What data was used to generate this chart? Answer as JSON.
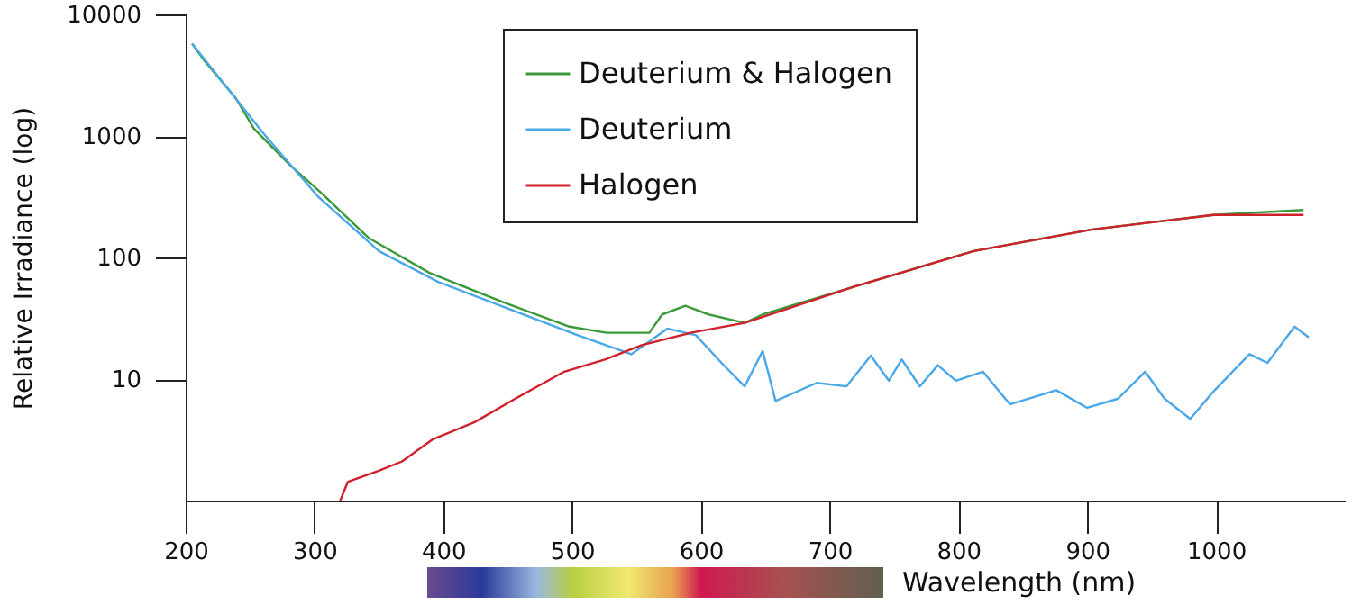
{
  "chart_data": {
    "type": "line",
    "xlabel": "Wavelength (nm)",
    "ylabel": "Relative Irradiance (log)",
    "log": "y",
    "grid": false,
    "legend": "top",
    "line_style": "solid",
    "marker": "none",
    "xlim": [
      200,
      1100
    ],
    "ylim": [
      1,
      10000
    ],
    "xticks": [
      200,
      300,
      400,
      500,
      600,
      700,
      800,
      900,
      1000
    ],
    "yticks": [
      10,
      100,
      1000,
      10000
    ],
    "series": [
      {
        "name": "Deuterium & Halogen",
        "color": "#3a9a3a",
        "x": [
          205,
          215,
          239,
          253,
          281,
          304,
          342,
          389,
          446,
          498,
          527,
          560,
          570,
          588,
          606,
          634,
          648,
          718,
          812,
          904,
          998,
          1068
        ],
        "values": [
          5750,
          4100,
          2040,
          1150,
          575,
          350,
          145,
          75,
          43,
          27,
          24,
          24,
          34,
          40,
          34,
          29,
          34,
          57,
          113,
          170,
          224,
          246
        ]
      },
      {
        "name": "Deuterium",
        "color": "#4aa8e8",
        "x": [
          205,
          224,
          261,
          303,
          350,
          396,
          456,
          504,
          546,
          574,
          596,
          616,
          634,
          648,
          658,
          690,
          713,
          732,
          746,
          756,
          770,
          784,
          798,
          819,
          840,
          876,
          900,
          924,
          945,
          960,
          980,
          998,
          1026,
          1040,
          1061,
          1072
        ],
        "values": [
          5750,
          3200,
          1030,
          315,
          113,
          63,
          36,
          23,
          16,
          26,
          23,
          13.6,
          8.7,
          17,
          6.6,
          9.3,
          8.7,
          15.6,
          9.7,
          14.5,
          8.7,
          13,
          9.7,
          11.5,
          6.2,
          8.1,
          5.8,
          6.9,
          11.5,
          6.9,
          4.7,
          7.9,
          16,
          13.6,
          27,
          22
        ]
      },
      {
        "name": "Halogen",
        "color": "#d0202a",
        "x": [
          320,
          326,
          350,
          368,
          392,
          424,
          456,
          494,
          526,
          554,
          592,
          634,
          718,
          812,
          904,
          998,
          1068
        ],
        "values": [
          1.0,
          1.43,
          1.76,
          2.1,
          3.2,
          4.4,
          6.9,
          11.5,
          14.5,
          19,
          24,
          29,
          57,
          113,
          170,
          224,
          224
        ]
      }
    ]
  }
}
